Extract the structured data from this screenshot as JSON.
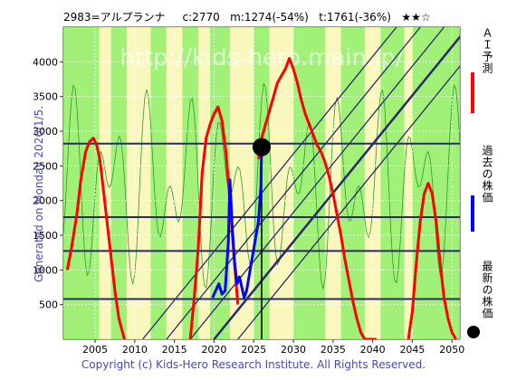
{
  "title_text": "2983=アルプランナ     c:2770   m:1274(-54%)   t:1761(-36%)   ★★☆",
  "side_note": "Generated on Monday 2026/1/5.",
  "footer": "Copyright (c) Kids-Hero Research Institute. All Rights Reserved.",
  "watermark": "http://kids-hero.main.jp/",
  "legend": {
    "ai_forecast": "ＡＩ予測",
    "past_price": "過去の株価",
    "latest_price": "最新の株価"
  },
  "colors": {
    "ai_forecast": "#ff0000",
    "past_price": "#0000ff",
    "latest_price": "#000000",
    "hlines": "#2a2a6a",
    "diag": "#2a2a6a",
    "band_green": "#90ee60",
    "band_yellow": "#f8f6b0"
  },
  "chart_data": {
    "type": "line",
    "xlim": [
      2001,
      2051
    ],
    "ylim": [
      0,
      4500
    ],
    "x_ticks": [
      2005,
      2010,
      2015,
      2020,
      2025,
      2030,
      2035,
      2040,
      2045,
      2050
    ],
    "y_ticks": [
      500,
      1000,
      1500,
      2000,
      2500,
      3000,
      3500,
      4000
    ],
    "grid": true,
    "series": [
      {
        "name": "ＡＩ予測",
        "color": "#ff0000",
        "x": [
          2001.5,
          2002,
          2002.7,
          2003.2,
          2003.8,
          2004.3,
          2004.8,
          2005.2,
          2005.6,
          2006.0,
          2006.5,
          2007.0,
          2007.5,
          2008.0,
          2008.7,
          2017.0,
          2017.5,
          2018.0,
          2018.5,
          2019.0,
          2019.5,
          2020.0,
          2020.5,
          2021.0,
          2021.5,
          2022.0,
          2022.5,
          2023.0,
          2025.6,
          2026.0,
          2026.5,
          2027.0,
          2027.5,
          2028.0,
          2028.5,
          2029.0,
          2029.5,
          2030.0,
          2030.5,
          2031.0,
          2031.5,
          2032.0,
          2032.5,
          2033.0,
          2033.5,
          2034.0,
          2034.5,
          2035.0,
          2035.5,
          2036.0,
          2036.5,
          2037.0,
          2037.5,
          2038.0,
          2038.5,
          2039.0,
          2039.5,
          2040.0,
          2040.5,
          2044.5,
          2045.0,
          2045.5,
          2046.0,
          2046.5,
          2047.0,
          2047.5,
          2048.0,
          2048.5,
          2049.0,
          2049.5,
          2050.0,
          2050.5
        ],
        "y": [
          1000,
          1300,
          1800,
          2300,
          2700,
          2850,
          2900,
          2800,
          2600,
          2200,
          1700,
          1200,
          700,
          300,
          0,
          0,
          600,
          1300,
          2400,
          2900,
          3100,
          3250,
          3350,
          3150,
          2700,
          2000,
          1200,
          500,
          2600,
          2900,
          3100,
          3300,
          3500,
          3700,
          3800,
          3900,
          4050,
          3900,
          3700,
          3450,
          3250,
          3100,
          2950,
          2800,
          2700,
          2550,
          2350,
          2100,
          1800,
          1500,
          1150,
          850,
          550,
          300,
          100,
          0,
          0,
          0,
          0,
          0,
          400,
          1100,
          1700,
          2100,
          2250,
          2100,
          1700,
          1100,
          600,
          300,
          100,
          0
        ],
        "segments": [
          [
            0,
            15
          ],
          [
            15,
            28
          ],
          [
            28,
            59
          ],
          [
            59,
            72
          ]
        ]
      },
      {
        "name": "過去の株価",
        "color": "#0000ff",
        "x": [
          2019.8,
          2020.2,
          2020.6,
          2021.0,
          2021.4,
          2021.8,
          2022.0,
          2022.3,
          2022.6,
          2022.9,
          2023.2,
          2023.5,
          2023.8,
          2024.1,
          2024.4,
          2024.7,
          2025.0,
          2025.3,
          2025.6,
          2025.9,
          2026.0
        ],
        "y": [
          600,
          700,
          800,
          650,
          700,
          1400,
          2300,
          1600,
          1100,
          800,
          900,
          750,
          600,
          700,
          900,
          1100,
          1300,
          1500,
          1700,
          2200,
          2770
        ]
      }
    ],
    "latest_point": {
      "x": 2026.0,
      "y": 2770
    },
    "hlines": [
      580,
      1274,
      1761,
      2820
    ],
    "vline_x": 2026.0
  }
}
